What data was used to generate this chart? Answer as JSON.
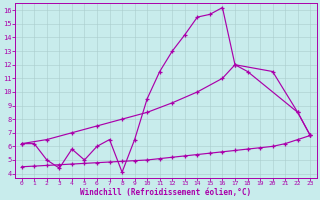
{
  "bg_color": "#c8ecec",
  "line_color": "#aa00aa",
  "grid_color": "#aacccc",
  "xlabel": "Windchill (Refroidissement éolien,°C)",
  "xlim_min": -0.5,
  "xlim_max": 23.5,
  "ylim_min": 3.7,
  "ylim_max": 16.5,
  "xticks": [
    0,
    1,
    2,
    3,
    4,
    5,
    6,
    7,
    8,
    9,
    10,
    11,
    12,
    13,
    14,
    15,
    16,
    17,
    18,
    19,
    20,
    21,
    22,
    23
  ],
  "yticks": [
    4,
    5,
    6,
    7,
    8,
    9,
    10,
    11,
    12,
    13,
    14,
    15,
    16
  ],
  "line1_x": [
    0,
    1,
    2,
    3,
    4,
    5,
    6,
    7,
    8,
    9,
    10,
    11,
    12,
    13,
    14,
    15,
    16,
    17,
    18,
    22,
    23
  ],
  "line1_y": [
    6.2,
    6.2,
    5.0,
    4.4,
    5.8,
    5.0,
    6.0,
    6.5,
    4.1,
    6.5,
    9.5,
    11.5,
    13.0,
    14.2,
    15.5,
    15.7,
    16.2,
    12.0,
    11.5,
    8.5,
    6.8
  ],
  "line2_x": [
    0,
    2,
    4,
    6,
    8,
    10,
    12,
    14,
    16,
    17,
    20,
    22,
    23
  ],
  "line2_y": [
    6.2,
    6.5,
    7.0,
    7.5,
    8.0,
    8.5,
    9.2,
    10.0,
    11.0,
    12.0,
    11.5,
    8.5,
    6.8
  ],
  "line3_x": [
    0,
    1,
    2,
    3,
    4,
    5,
    6,
    7,
    8,
    9,
    10,
    11,
    12,
    13,
    14,
    15,
    16,
    17,
    18,
    19,
    20,
    21,
    22,
    23
  ],
  "line3_y": [
    4.5,
    4.55,
    4.6,
    4.65,
    4.7,
    4.75,
    4.8,
    4.85,
    4.9,
    4.95,
    5.0,
    5.1,
    5.2,
    5.3,
    5.4,
    5.5,
    5.6,
    5.7,
    5.8,
    5.9,
    6.0,
    6.2,
    6.5,
    6.8
  ]
}
